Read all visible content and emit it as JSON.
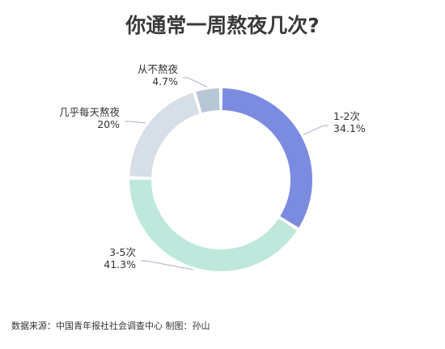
{
  "chart_data": {
    "type": "pie",
    "title": "你通常一周熬夜几次?",
    "slices": [
      {
        "name": "1-2次",
        "label": "34.1%",
        "value": 34.1,
        "color": "#7b8be0"
      },
      {
        "name": "3-5次",
        "label": "41.3%",
        "value": 41.3,
        "color": "#bfe8dc"
      },
      {
        "name": "几乎每天熬夜",
        "label": "20%",
        "value": 20,
        "color": "#d6dee8"
      },
      {
        "name": "从不熬夜",
        "label": "4.7%",
        "value": 4.7,
        "color": "#b7c7d6"
      }
    ],
    "source": "数据来源：中国青年报社社会调查中心 制图：孙山"
  }
}
